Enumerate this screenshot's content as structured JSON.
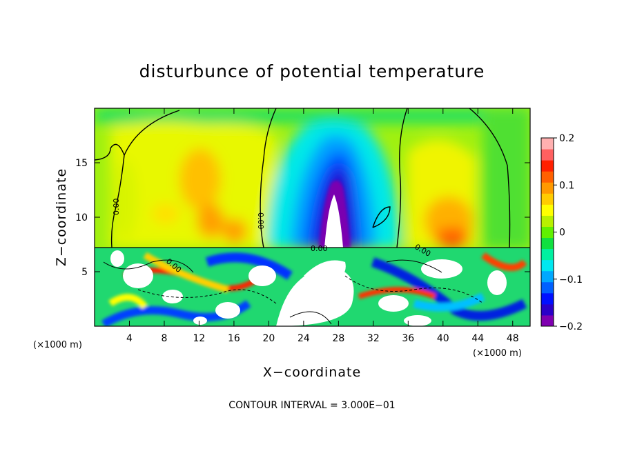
{
  "chart_data": {
    "type": "heatmap",
    "title": "disturbunce of potential temperature",
    "xlabel": "X−coordinate",
    "ylabel": "Z−coordinate",
    "x_unit_left": "(×1000 m)",
    "x_unit_right": "(×1000 m)",
    "xlim": [
      0,
      50
    ],
    "ylim": [
      0,
      20
    ],
    "x_ticks": [
      4,
      8,
      12,
      16,
      20,
      24,
      28,
      32,
      36,
      40,
      44,
      48
    ],
    "y_ticks": [
      5,
      10,
      15
    ],
    "colorbar": {
      "min": -0.2,
      "max": 0.2,
      "ticks": [
        0.2,
        0.1,
        0,
        -0.1,
        -0.2
      ],
      "tick_labels": [
        "0.2",
        "0.1",
        "0",
        "−0.1",
        "−0.2"
      ],
      "colors": [
        "#7f00b0",
        "#2a00c8",
        "#0010ff",
        "#0060ff",
        "#00a8ff",
        "#00e8f0",
        "#00f0a0",
        "#10e040",
        "#60f000",
        "#b8f000",
        "#ffff00",
        "#ffcc00",
        "#ff9900",
        "#ff6000",
        "#ff2000",
        "#ff6060",
        "#ffb0b0"
      ]
    },
    "contour_interval_text": "CONTOUR INTERVAL = 3.000E−01",
    "contour_labels": [
      "0.00",
      "0.00",
      "0.00",
      "0.00",
      "0.00"
    ],
    "upper_layer_boundary_z": 7.3,
    "features": [
      {
        "name": "negative core",
        "x": 27,
        "z_range": [
          7.3,
          14
        ],
        "value": -0.2
      },
      {
        "name": "warm region left",
        "x": 12,
        "z": 12,
        "value": 0.1
      },
      {
        "name": "warm region right",
        "x": 40.5,
        "z": 9,
        "value": 0.12
      },
      {
        "name": "lower turbulent layer",
        "z_range": [
          0,
          7.3
        ],
        "value_range": [
          -0.2,
          0.2
        ]
      }
    ]
  }
}
